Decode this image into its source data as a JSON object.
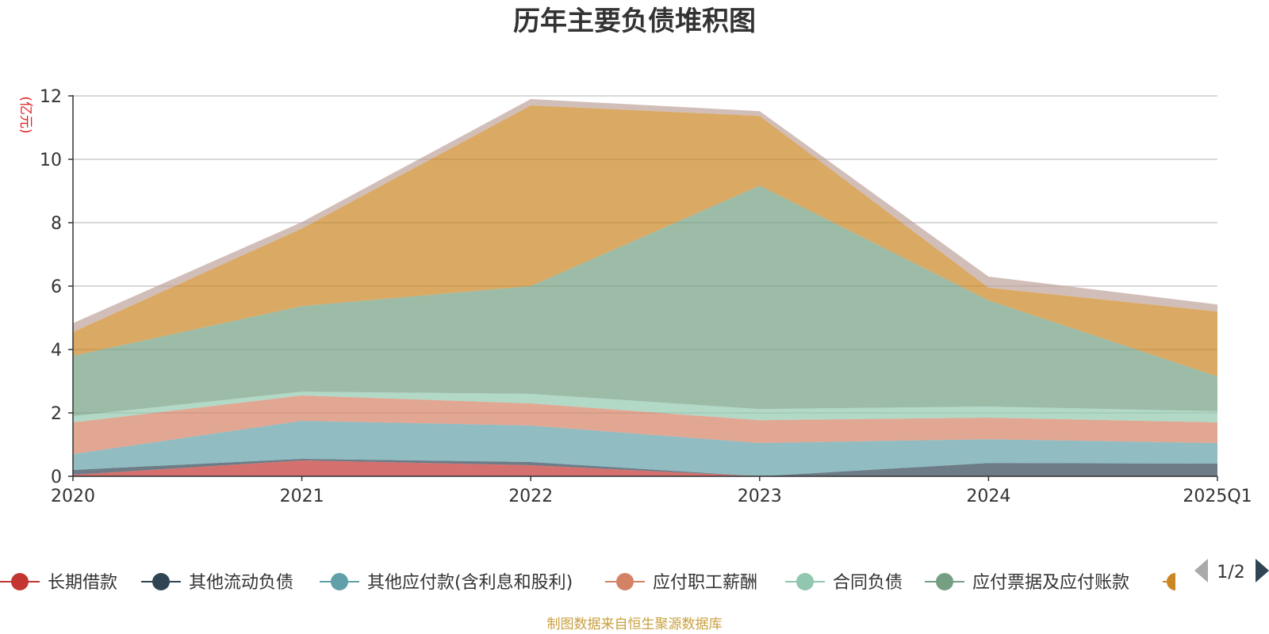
{
  "chart_data": {
    "type": "area",
    "stacked": true,
    "title": "历年主要负债堆积图",
    "unit_label": "(亿元)",
    "xlabel": "",
    "ylabel": "",
    "ylim": [
      0,
      12
    ],
    "yticks": [
      "0",
      "2",
      "4",
      "6",
      "8",
      "10",
      "12"
    ],
    "categories": [
      "2020",
      "2021",
      "2022",
      "2023",
      "2024",
      "2025Q1"
    ],
    "grid": true,
    "series": [
      {
        "name": "长期借款",
        "color": "#c23531",
        "values": [
          0.05,
          0.5,
          0.35,
          0.0,
          0.0,
          0.0
        ]
      },
      {
        "name": "其他流动负债",
        "color": "#2f4554",
        "values": [
          0.15,
          0.05,
          0.1,
          0.0,
          0.42,
          0.4
        ]
      },
      {
        "name": "其他应付款(含利息和股利)",
        "color": "#61a0a8",
        "values": [
          0.5,
          1.2,
          1.15,
          1.05,
          0.75,
          0.65
        ]
      },
      {
        "name": "应付职工薪酬",
        "color": "#d48265",
        "values": [
          1.0,
          0.8,
          0.7,
          0.72,
          0.68,
          0.65
        ]
      },
      {
        "name": "合同负债",
        "color": "#91c7ae",
        "values": [
          0.2,
          0.12,
          0.3,
          0.35,
          0.35,
          0.35
        ]
      },
      {
        "name": "应付票据及应付账款",
        "color": "#749f83",
        "values": [
          1.9,
          2.7,
          3.4,
          7.05,
          3.35,
          1.1
        ]
      },
      {
        "name": "",
        "color": "#ca8622",
        "values": [
          0.75,
          2.45,
          5.7,
          2.2,
          0.4,
          2.05
        ]
      },
      {
        "name": "",
        "color": "#bda29a",
        "values": [
          0.28,
          0.2,
          0.2,
          0.15,
          0.35,
          0.22
        ]
      }
    ],
    "legend": {
      "position": "bottom",
      "visible_series": 6,
      "page": "1/2"
    }
  },
  "footer": {
    "source": "制图数据来自恒生聚源数据库"
  }
}
